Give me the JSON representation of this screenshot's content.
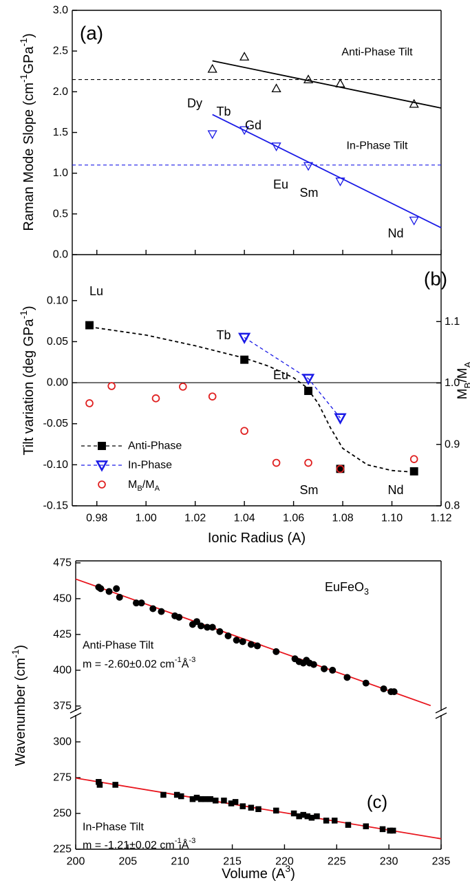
{
  "chart_data": [
    {
      "type": "scatter",
      "ylabel": [
        {
          "text": "Raman Mode Slope (cm"
        },
        {
          "sup": "-1"
        },
        {
          "text": "GPa"
        },
        {
          "sup": "-1"
        },
        {
          "text": ")"
        }
      ],
      "xlim": [
        0.97,
        1.12
      ],
      "xticks": [
        0.98,
        {
          "value": 1.0,
          "label": "1.00"
        },
        1.02,
        1.04,
        1.06,
        1.08,
        {
          "value": 1.1,
          "label": "1.10"
        },
        1.12
      ],
      "ylim": [
        0,
        3
      ],
      "yticks": [
        {
          "value": 0,
          "label": "0.0"
        },
        0.5,
        {
          "value": 1,
          "label": "1.0"
        },
        1.5,
        {
          "value": 2,
          "label": "2.0"
        },
        2.5,
        {
          "value": 3,
          "label": "3.0"
        }
      ],
      "hlines": [
        {
          "value": 2.15,
          "color": "#000000",
          "line_style": "dashed"
        },
        {
          "value": 1.1,
          "color": "#1a1ae6",
          "line_style": "dashed"
        }
      ],
      "series": [
        {
          "name": "Anti-Phase Tilt",
          "color": "#000000",
          "marker": "triangle-up",
          "x": [
            1.027,
            1.04,
            1.053,
            1.066,
            1.079,
            1.109
          ],
          "values": [
            2.28,
            2.43,
            2.04,
            2.15,
            2.1,
            1.85
          ],
          "fit": {
            "color": "#000000",
            "line_style": "solid",
            "x": [
              1.027,
              1.12
            ],
            "values": [
              2.38,
              1.8
            ]
          }
        },
        {
          "name": "In-Phase Tilt",
          "color": "#1a1ae6",
          "marker": "triangle-down",
          "x": [
            1.027,
            1.04,
            1.053,
            1.066,
            1.079,
            1.109
          ],
          "values": [
            1.48,
            1.53,
            1.33,
            1.09,
            0.9,
            0.42
          ],
          "fit": {
            "color": "#1a1ae6",
            "line_style": "solid",
            "x": [
              1.027,
              1.12
            ],
            "values": [
              1.72,
              0.33
            ]
          }
        }
      ],
      "annotations": [
        "(a)",
        "Dy",
        "Tb",
        "Gd",
        "Eu",
        "Sm",
        "Nd"
      ]
    },
    {
      "type": "scatter",
      "xlabel": "Ionic Radius (A)",
      "ylabel": [
        {
          "text": "Tilt variation (deg GPa"
        },
        {
          "sup": "-1"
        },
        {
          "text": ")"
        }
      ],
      "y2label": [
        {
          "text": "M"
        },
        {
          "sub": "B"
        },
        {
          "text": "/M"
        },
        {
          "sub": "A"
        }
      ],
      "xlim": [
        0.97,
        1.12
      ],
      "xticks": [
        0.98,
        {
          "value": 1.0,
          "label": "1.00"
        },
        1.02,
        1.04,
        1.06,
        1.08,
        {
          "value": 1.1,
          "label": "1.10"
        },
        1.12
      ],
      "ylim": [
        -0.15,
        0.156
      ],
      "yticks": [
        {
          "value": 0.1,
          "label": "0.10"
        },
        0.05,
        {
          "value": 0,
          "label": "0.00"
        },
        -0.05,
        {
          "value": -0.1,
          "label": "-0.10"
        },
        -0.15
      ],
      "y2lim": [
        0.8,
        1.209
      ],
      "y2ticks": [
        0.8,
        0.9,
        {
          "value": 1,
          "label": "1.0"
        },
        1.1
      ],
      "hlines": [
        {
          "value": 0,
          "color": "#000000",
          "line_style": "solid"
        }
      ],
      "legend": "lower left",
      "series": [
        {
          "name": "Anti-Phase",
          "color": "#000000",
          "marker": "square",
          "x": [
            0.977,
            1.04,
            1.066,
            1.079,
            1.109
          ],
          "values": [
            0.07,
            0.028,
            -0.01,
            -0.105,
            -0.108
          ],
          "fit": {
            "color": "#000000",
            "line_style": "dashed",
            "x": [
              0.977,
              1.0,
              1.02,
              1.04,
              1.05,
              1.06,
              1.065,
              1.07,
              1.075,
              1.08,
              1.09,
              1.1,
              1.109
            ],
            "values": [
              0.068,
              0.058,
              0.045,
              0.03,
              0.02,
              0.006,
              -0.005,
              -0.025,
              -0.055,
              -0.08,
              -0.1,
              -0.107,
              -0.109
            ]
          }
        },
        {
          "name": "In-Phase",
          "color": "#1a1ae6",
          "marker": "triangle-down",
          "line_style": "dashed",
          "x": [
            1.04,
            1.066,
            1.079
          ],
          "values": [
            0.055,
            0.005,
            -0.043
          ]
        },
        {
          "name": [
            {
              "text": "M"
            },
            {
              "sub": "B"
            },
            {
              "text": "/M"
            },
            {
              "sub": "A"
            }
          ],
          "color": "#e02020",
          "marker": "circle",
          "axis": "y2",
          "x": [
            0.977,
            0.986,
            1.004,
            1.015,
            1.027,
            1.04,
            1.053,
            1.066,
            1.079,
            1.109
          ],
          "values": [
            0.967,
            0.995,
            0.975,
            0.994,
            0.978,
            0.922,
            0.87,
            0.87,
            0.86,
            0.876
          ]
        }
      ],
      "annotations": [
        "(b)",
        "Lu",
        "Tb",
        "Eu",
        "Sm",
        "Nd"
      ]
    },
    {
      "type": "scatter",
      "ylabel": [
        {
          "text": "Wavenumber (cm"
        },
        {
          "sup": "-1"
        },
        {
          "text": ")"
        }
      ],
      "xlim": [
        200,
        235
      ],
      "ylim": [
        371.6,
        476.4
      ],
      "yticks": [
        375,
        400,
        425,
        450,
        475
      ],
      "series": [
        {
          "name": "Anti-Phase Tilt",
          "color": "#000000",
          "marker": "circle-filled",
          "x": [
            202.2,
            202.4,
            203.2,
            203.9,
            204.2,
            205.8,
            206.3,
            207.4,
            208.2,
            209.5,
            209.9,
            211.2,
            211.6,
            212.0,
            212.6,
            213.1,
            213.8,
            214.6,
            215.4,
            216.0,
            216.8,
            217.4,
            219.2,
            221.0,
            221.4,
            221.8,
            222.1,
            222.4,
            222.8,
            223.8,
            224.6,
            226.0,
            227.8,
            229.5,
            230.2,
            230.5
          ],
          "values": [
            458,
            457,
            455,
            457,
            451,
            447,
            447,
            443,
            441,
            438,
            437,
            432,
            434,
            431,
            430,
            430,
            427,
            424,
            421,
            420,
            418,
            417,
            413,
            408,
            406,
            405,
            407,
            405,
            404,
            401,
            400,
            395,
            391,
            387,
            385,
            385
          ],
          "fit": {
            "color": "#e8141c",
            "line_style": "solid",
            "x": [
              200,
              234
            ],
            "values": [
              463.7,
              375.3
            ]
          }
        }
      ],
      "annotations": [
        [
          {
            "text": "EuFeO"
          },
          {
            "sub": "3"
          }
        ],
        [
          {
            "text": "m = -2.60±0.02 cm"
          },
          {
            "sup": "-1"
          },
          {
            "text": "Å"
          },
          {
            "sup": "-3"
          }
        ]
      ]
    },
    {
      "type": "scatter",
      "xlabel": [
        {
          "text": "Volume (A"
        },
        {
          "sup": "3"
        },
        {
          "text": ")"
        }
      ],
      "xlim": [
        200,
        235
      ],
      "xticks": [
        200,
        205,
        210,
        215,
        220,
        225,
        230,
        235
      ],
      "ylim": [
        225,
        318.75
      ],
      "yticks": [
        225,
        250,
        275,
        300
      ],
      "series": [
        {
          "name": "In-Phase Tilt",
          "color": "#000000",
          "marker": "square",
          "x": [
            202.2,
            202.3,
            203.8,
            208.4,
            209.7,
            210.1,
            211.2,
            211.6,
            212.0,
            212.4,
            212.9,
            213.4,
            214.2,
            214.9,
            215.3,
            216.0,
            216.8,
            217.5,
            219.2,
            220.9,
            221.4,
            221.8,
            222.2,
            222.6,
            223.1,
            224.0,
            224.8,
            226.1,
            227.8,
            229.4,
            230.1,
            230.4
          ],
          "values": [
            272,
            270,
            270,
            263,
            263,
            262,
            260,
            261,
            260,
            260,
            260,
            259,
            259,
            257,
            258,
            255,
            254,
            253,
            252,
            250,
            248,
            249,
            248,
            247,
            248,
            245,
            245,
            242,
            241,
            239,
            238,
            238
          ],
          "fit": {
            "color": "#e8141c",
            "line_style": "solid",
            "x": [
              200,
              235
            ],
            "values": [
              274.7,
              232.3
            ]
          }
        }
      ],
      "annotations": [
        "(c)",
        [
          {
            "text": "m = -1.21±0.02 cm"
          },
          {
            "sup": "-1"
          },
          {
            "text": "Å"
          },
          {
            "sup": "-3"
          }
        ]
      ]
    }
  ]
}
